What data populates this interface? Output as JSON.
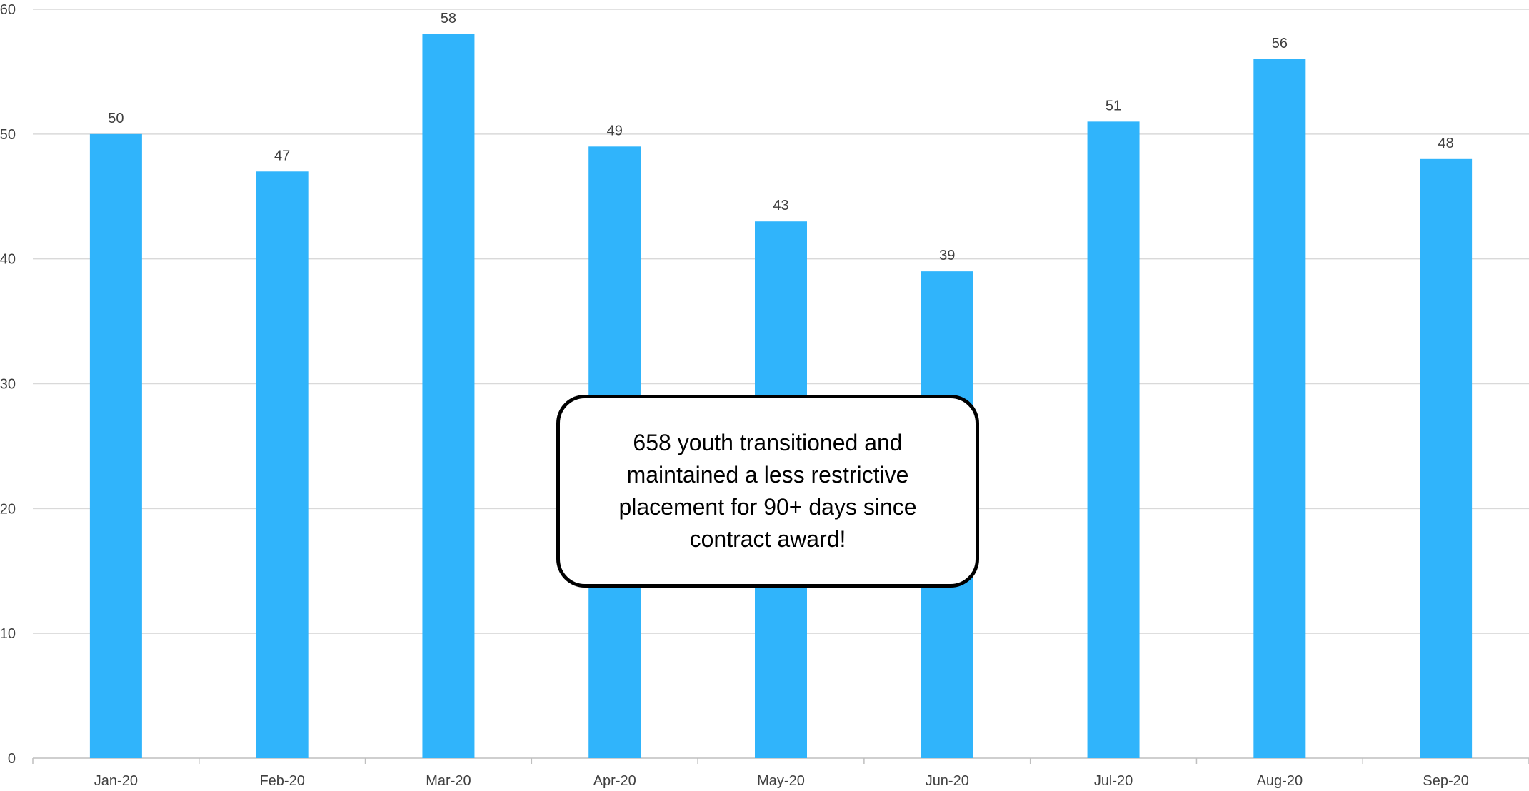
{
  "chart_data": {
    "type": "bar",
    "categories": [
      "Jan-20",
      "Feb-20",
      "Mar-20",
      "Apr-20",
      "May-20",
      "Jun-20",
      "Jul-20",
      "Aug-20",
      "Sep-20"
    ],
    "values": [
      50,
      47,
      58,
      49,
      43,
      39,
      51,
      56,
      48
    ],
    "ylim": [
      0,
      60
    ],
    "yticks": [
      0,
      10,
      20,
      30,
      40,
      50,
      60
    ],
    "grid": true,
    "data_labels": true,
    "bar_color": "#30b4fb"
  },
  "annotation": {
    "text": "658 youth transitioned and maintained a less restrictive placement for 90+ days since contract award!"
  }
}
